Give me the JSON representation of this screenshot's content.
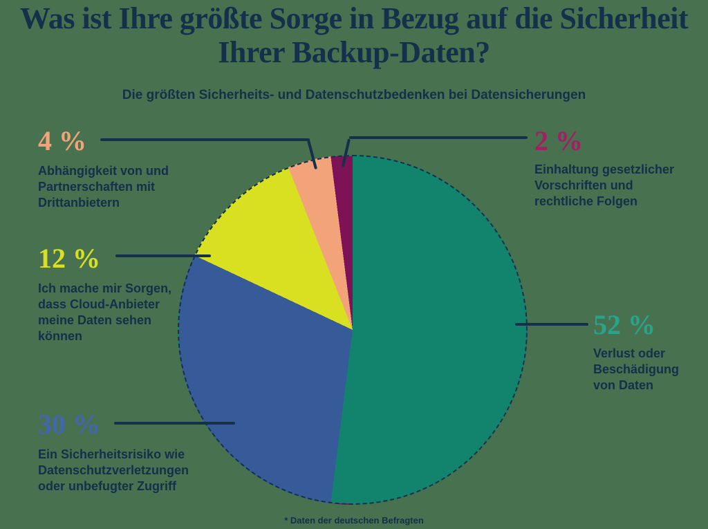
{
  "title": "Was ist Ihre größte Sorge in Bezug auf die Sicherheit Ihrer Backup-Daten?",
  "subtitle": "Die größten Sicherheits- und Datenschutzbedenken bei Datensicherungen",
  "footnote": "* Daten der deutschen Befragten",
  "theme": {
    "background": "#48714F",
    "text_navy": "#14304A",
    "callout_line": "#14304A"
  },
  "chart_data": {
    "type": "pie",
    "title": "Die größten Sicherheits- und Datenschutzbedenken bei Datensicherungen",
    "unit": "%",
    "start_angle_deg": 0,
    "direction": "clockwise",
    "legend_position": "callouts",
    "slices": [
      {
        "label": "Verlust oder Beschädigung von Daten",
        "value": 52,
        "color": "#12846E"
      },
      {
        "label": "Ein Sicherheitsrisiko wie Datenschutzverletzungen oder unbefugter Zugriff",
        "value": 30,
        "color": "#375A98"
      },
      {
        "label": "Ich mache mir Sorgen, dass Cloud-Anbieter meine Daten sehen können",
        "value": 12,
        "color": "#D9E021"
      },
      {
        "label": "Abhängigkeit von und Partnerschaften mit Drittanbietern",
        "value": 4,
        "color": "#F2A379"
      },
      {
        "label": "Einhaltung gesetzlicher Vorschriften und rechtliche Folgen",
        "value": 2,
        "color": "#7D1257"
      }
    ]
  },
  "callouts": {
    "loss": {
      "pct": "52 %",
      "number_color": "#2AA38B",
      "text": "Verlust oder\nBeschädigung\nvon Daten"
    },
    "risk": {
      "pct": "30 %",
      "number_color": "#4366AE",
      "text": "Ein Sicherheitsrisiko wie\nDatenschutzverletzungen\noder unbefugter Zugriff"
    },
    "cloud": {
      "pct": "12 %",
      "number_color": "#D9E021",
      "text": "Ich mache mir Sorgen,\ndass Cloud-Anbieter\nmeine Daten sehen\nkönnen"
    },
    "thirdparty": {
      "pct": "4 %",
      "number_color": "#F2A379",
      "text": "Abhängigkeit von und\nPartnerschaften mit\nDrittanbietern"
    },
    "legal": {
      "pct": "2 %",
      "number_color": "#A41E64",
      "text": "Einhaltung gesetzlicher\nVorschriften und\nrechtliche Folgen"
    }
  }
}
